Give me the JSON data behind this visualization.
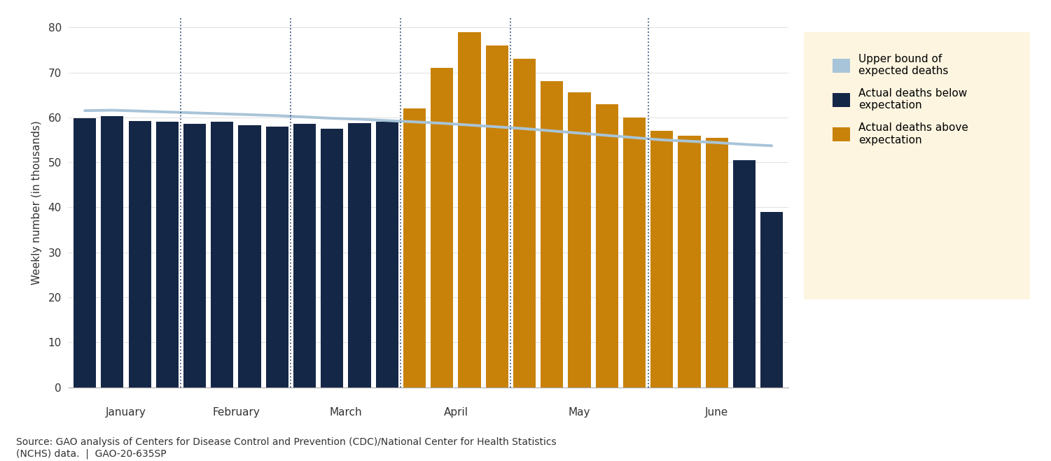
{
  "ylabel": "Weekly number (in thousands)",
  "source_text": "Source: GAO analysis of Centers for Disease Control and Prevention (CDC)/National Center for Health Statistics\n(NCHS) data.  |  GAO-20-635SP",
  "bar_values": [
    59.8,
    60.3,
    59.2,
    59.0,
    58.5,
    59.0,
    58.2,
    58.0,
    58.5,
    57.5,
    58.8,
    59.0,
    62.0,
    71.0,
    79.0,
    76.0,
    73.0,
    68.0,
    65.5,
    63.0,
    60.0,
    57.0,
    56.0,
    55.5,
    50.5,
    39.0
  ],
  "above_expectation": [
    false,
    false,
    false,
    false,
    false,
    false,
    false,
    false,
    false,
    false,
    false,
    false,
    true,
    true,
    true,
    true,
    true,
    true,
    true,
    true,
    true,
    true,
    true,
    true,
    false,
    false
  ],
  "upper_bound": [
    61.5,
    61.6,
    61.4,
    61.2,
    61.0,
    60.8,
    60.6,
    60.4,
    60.1,
    59.8,
    59.6,
    59.3,
    59.0,
    58.7,
    58.3,
    57.9,
    57.5,
    57.0,
    56.5,
    56.0,
    55.5,
    55.0,
    54.7,
    54.4,
    54.0,
    53.7
  ],
  "month_labels": [
    "January",
    "February",
    "March",
    "April",
    "May",
    "June"
  ],
  "month_dividers_after_idx": [
    3,
    7,
    11,
    15,
    20
  ],
  "month_label_centers": [
    1.5,
    5.5,
    9.5,
    13.5,
    18.0,
    23.0
  ],
  "navy_color": "#152747",
  "orange_color": "#c8820a",
  "line_color": "#a8c4d8",
  "legend_bg": "#fdf5e0",
  "ylim": [
    0,
    82
  ],
  "yticks": [
    0,
    10,
    20,
    30,
    40,
    50,
    60,
    70,
    80
  ],
  "bar_width": 0.82,
  "axis_fontsize": 11,
  "tick_fontsize": 11,
  "source_fontsize": 10,
  "legend_fontsize": 11
}
